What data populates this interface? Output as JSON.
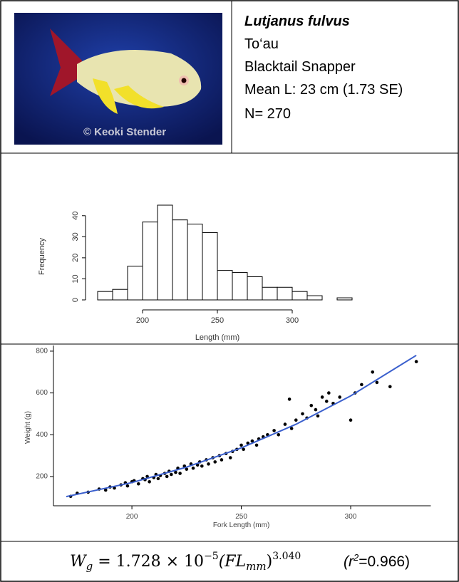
{
  "header": {
    "species": "Lutjanus fulvus",
    "local_name": "To‘au",
    "common_name": "Blacktail Snapper",
    "mean_length": "Mean L: 23 cm (1.73 SE)",
    "sample_size": "N= 270"
  },
  "photo": {
    "credit": "© Keoki Stender"
  },
  "chart_data": [
    {
      "type": "histogram",
      "xlabel": "Length (mm)",
      "ylabel": "Frequency",
      "bins": [
        170,
        180,
        190,
        200,
        210,
        220,
        230,
        240,
        250,
        260,
        270,
        280,
        290,
        300,
        310,
        320,
        330,
        340
      ],
      "values": [
        4,
        5,
        16,
        37,
        45,
        38,
        36,
        32,
        14,
        13,
        11,
        6,
        6,
        4,
        2,
        0,
        1
      ],
      "xlim": [
        165,
        345
      ],
      "ylim": [
        0,
        45
      ],
      "xticks": [
        200,
        250,
        300
      ],
      "yticks": [
        0,
        10,
        20,
        30,
        40
      ],
      "color": "#ffffff"
    },
    {
      "type": "scatter",
      "xlabel": "Fork Length (mm)",
      "ylabel": "Weight (g)",
      "color": "#000000",
      "x": [
        172,
        175,
        180,
        185,
        188,
        190,
        192,
        195,
        197,
        198,
        200,
        201,
        203,
        205,
        206,
        207,
        208,
        210,
        211,
        212,
        213,
        215,
        216,
        217,
        218,
        220,
        221,
        222,
        224,
        225,
        227,
        228,
        230,
        231,
        232,
        234,
        235,
        237,
        238,
        240,
        241,
        243,
        245,
        246,
        248,
        250,
        251,
        253,
        255,
        257,
        258,
        260,
        262,
        265,
        267,
        270,
        272,
        273,
        275,
        278,
        280,
        282,
        284,
        285,
        287,
        289,
        290,
        292,
        295,
        300,
        302,
        305,
        310,
        312,
        318,
        330
      ],
      "y": [
        105,
        120,
        125,
        140,
        135,
        150,
        145,
        160,
        170,
        155,
        175,
        180,
        165,
        190,
        185,
        200,
        175,
        195,
        210,
        190,
        205,
        215,
        200,
        225,
        210,
        220,
        240,
        215,
        250,
        235,
        260,
        240,
        255,
        270,
        250,
        280,
        260,
        290,
        270,
        300,
        280,
        310,
        290,
        320,
        330,
        350,
        330,
        360,
        370,
        350,
        380,
        390,
        400,
        420,
        400,
        450,
        570,
        430,
        470,
        500,
        480,
        540,
        520,
        490,
        580,
        560,
        600,
        550,
        580,
        470,
        600,
        640,
        700,
        650,
        630,
        750
      ],
      "fit": {
        "color": "#3a5fcd",
        "x": [
          170,
          200,
          225,
          250,
          275,
          300,
          330
        ],
        "y": [
          104,
          171,
          245,
          337,
          450,
          586,
          780
        ]
      },
      "xlim": [
        165,
        335
      ],
      "ylim": [
        60,
        810
      ],
      "xticks": [
        200,
        250,
        300
      ],
      "yticks": [
        200,
        400,
        600,
        800
      ]
    }
  ],
  "formula": {
    "lhs": "W",
    "lhs_sub": "g",
    "rhs": " = 1.728 × 10",
    "exponent": "−5",
    "factor": "(FL",
    "factor_sub": "mm",
    "close": ")",
    "power": "3.040",
    "r2": "(r",
    "r2_sup": "2",
    "r2_value": "=0.966)"
  }
}
